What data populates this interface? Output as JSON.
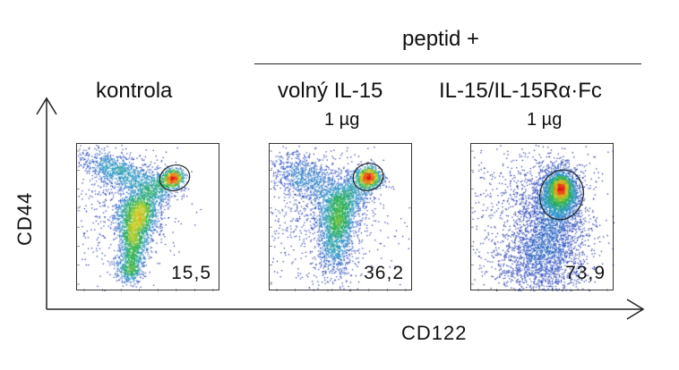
{
  "header": {
    "group_label": "peptid +"
  },
  "axes": {
    "x_title": "CD122",
    "y_title": "CD44"
  },
  "colors": {
    "ink": "#111111",
    "density_low": "#0a1a8a",
    "density_mid": "#21b24a",
    "density_high": "#e3221c"
  },
  "chart_data": {
    "type": "scatter",
    "subtype": "flow-cytometry-density-plot",
    "xlabel": "CD122",
    "ylabel": "CD44",
    "group_header": "peptid +",
    "panels": [
      {
        "label": "kontrola",
        "dose": "",
        "gate_value": "15,5"
      },
      {
        "label": "volný IL-15",
        "dose": "1 µg",
        "gate_value": "36,2"
      },
      {
        "label": "IL-15/IL-15Rα·Fc",
        "dose": "1 µg",
        "gate_value": "73,9"
      }
    ]
  }
}
